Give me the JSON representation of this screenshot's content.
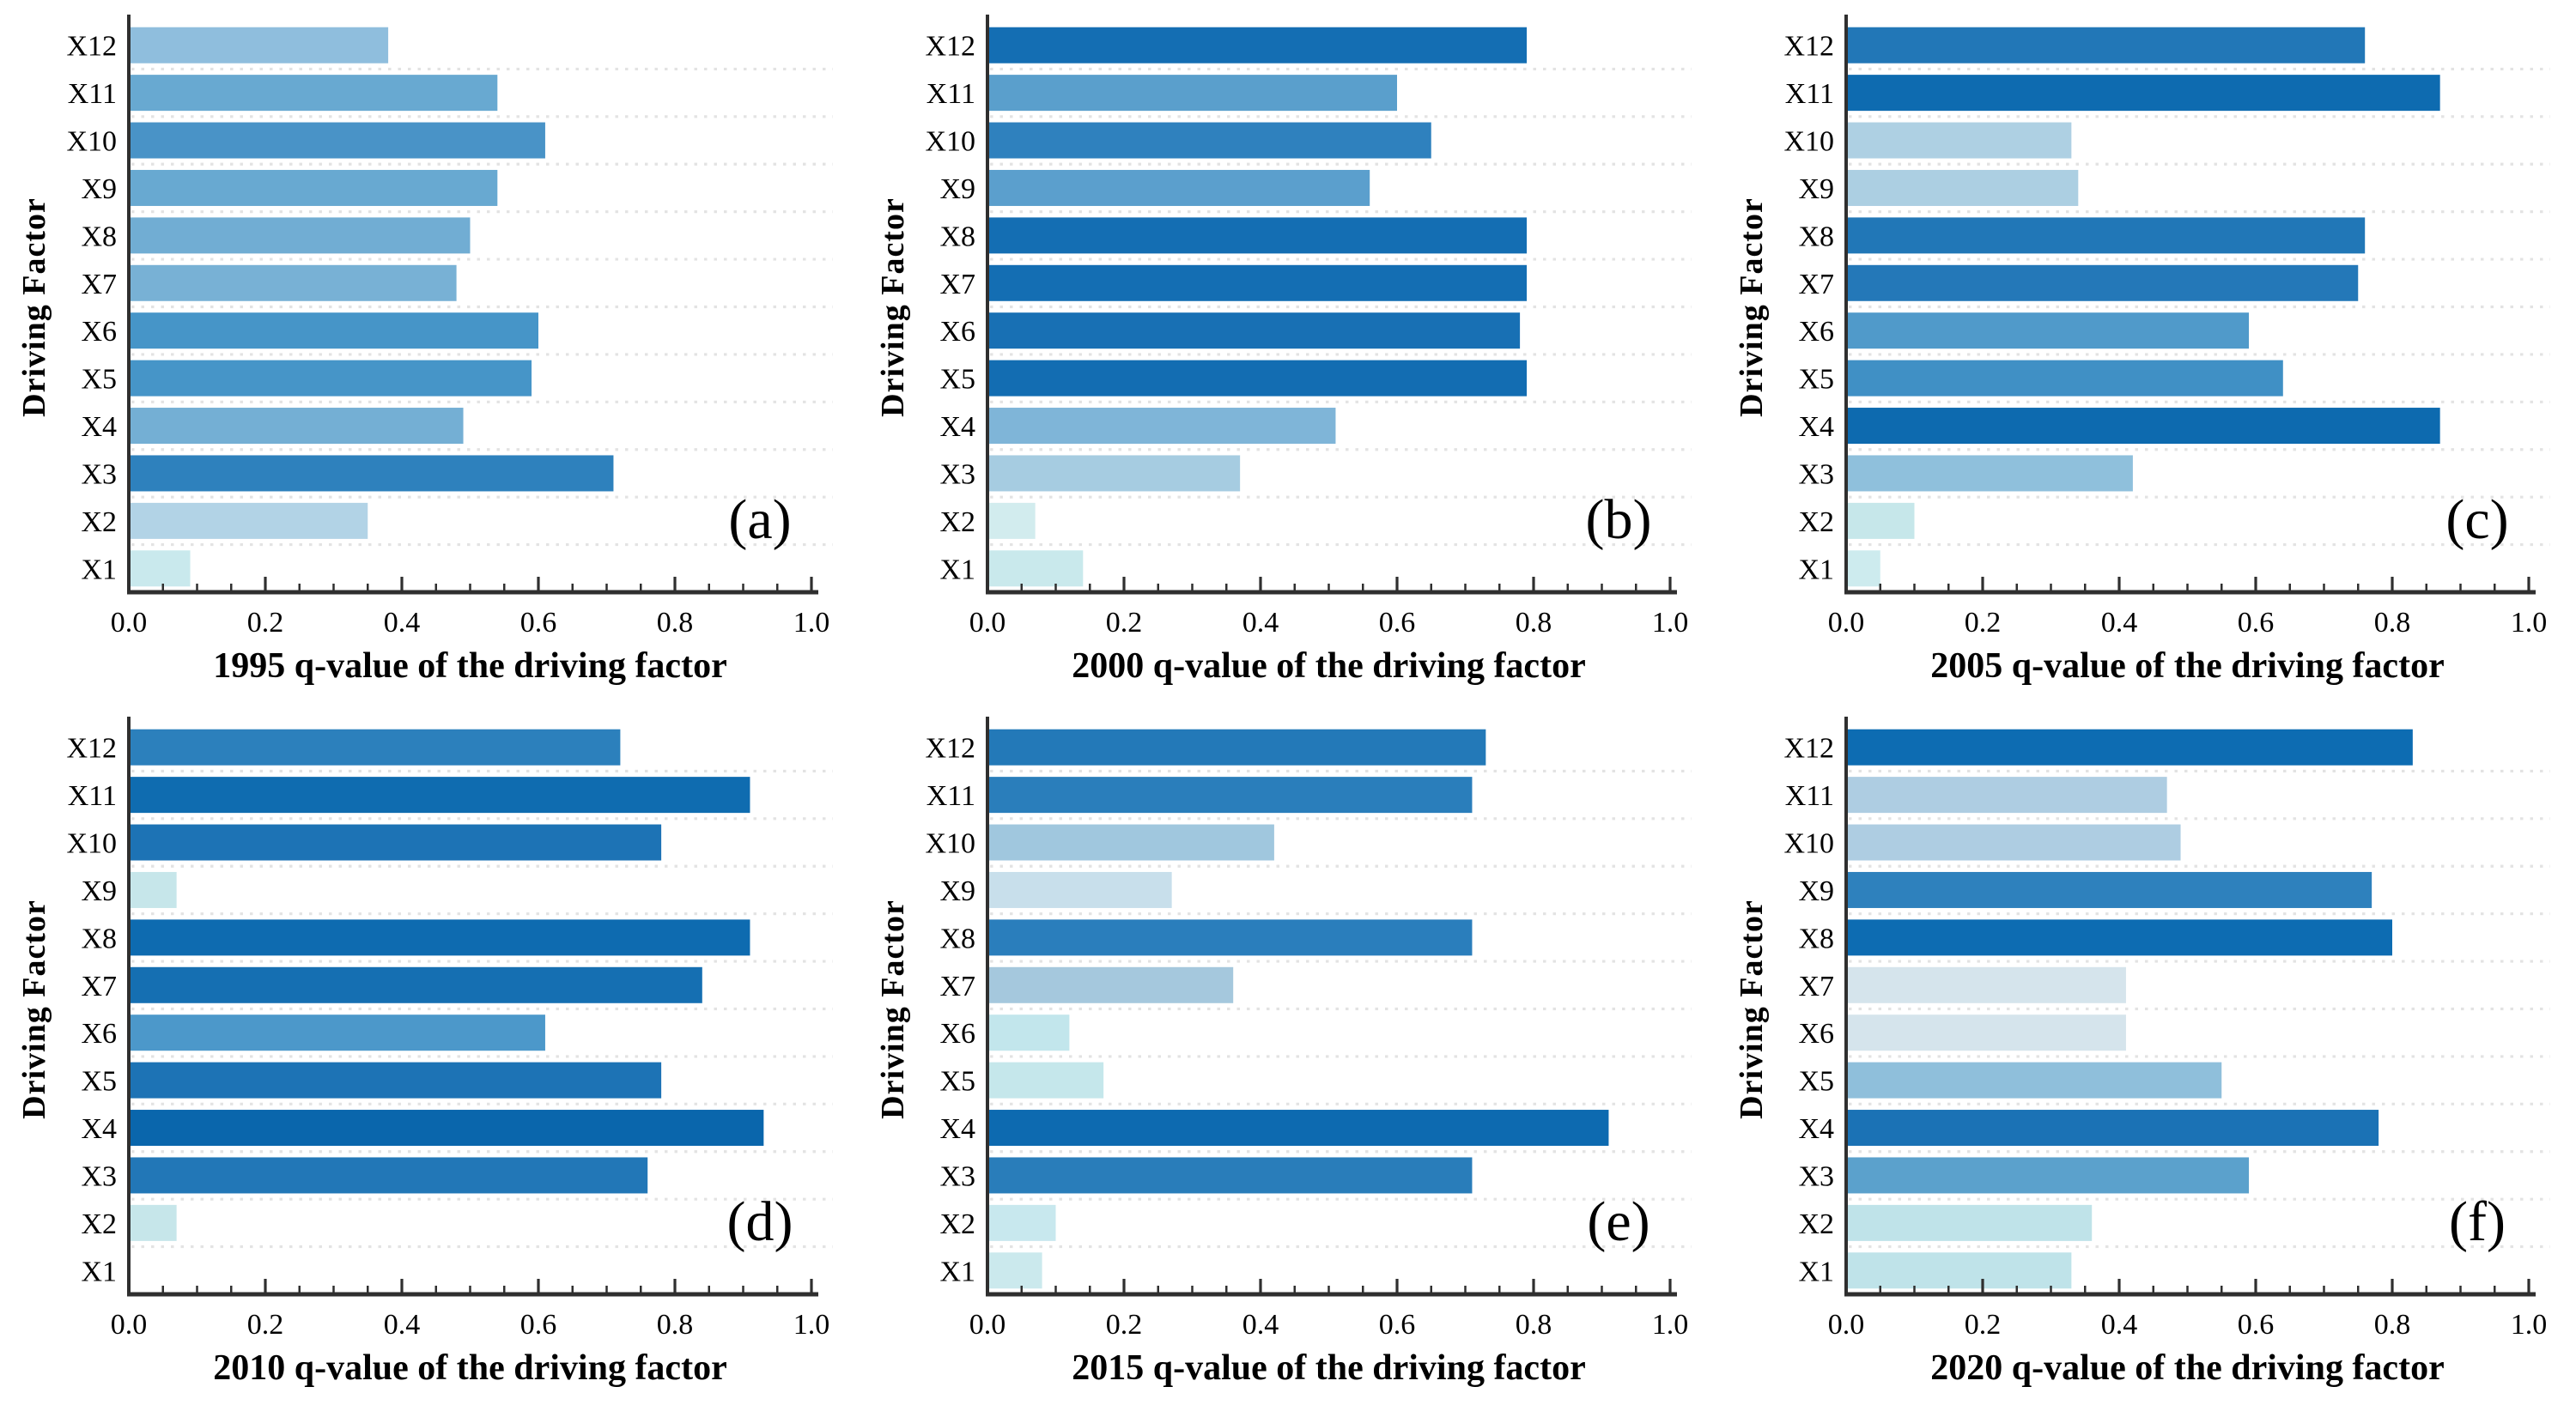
{
  "figure": {
    "background_color": "#ffffff",
    "axis_color": "#2f2f2f",
    "grid_color": "#e3e3e3",
    "text_color": "#000000"
  },
  "chart_data": [
    {
      "panel_label": "(a)",
      "type": "bar",
      "orientation": "horizontal",
      "xlabel": "1995 q-value of the driving factor",
      "ylabel": "Driving Factor",
      "xlim": [
        0,
        1
      ],
      "xticks": [
        "0.0",
        "0.2",
        "0.4",
        "0.6",
        "0.8",
        "1.0"
      ],
      "minor_tick_step": 0.05,
      "grid": "dotted horizontal between rows",
      "categories_top_to_bottom": [
        "X12",
        "X11",
        "X10",
        "X9",
        "X8",
        "X7",
        "X6",
        "X5",
        "X4",
        "X3",
        "X2",
        "X1"
      ],
      "values": [
        0.38,
        0.54,
        0.61,
        0.54,
        0.5,
        0.48,
        0.6,
        0.59,
        0.49,
        0.71,
        0.35,
        0.09
      ],
      "bar_colors": [
        "#8fbedd",
        "#68a9d1",
        "#4993c7",
        "#68a9d1",
        "#71add3",
        "#78b1d5",
        "#4695c8",
        "#4695c8",
        "#74afd4",
        "#2e81bd",
        "#b2d3e6",
        "#c9e9ed"
      ]
    },
    {
      "panel_label": "(b)",
      "type": "bar",
      "orientation": "horizontal",
      "xlabel": "2000 q-value of the driving factor",
      "ylabel": "Driving Factor",
      "xlim": [
        0,
        1
      ],
      "xticks": [
        "0.0",
        "0.2",
        "0.4",
        "0.6",
        "0.8",
        "1.0"
      ],
      "minor_tick_step": 0.05,
      "grid": "dotted horizontal between rows",
      "categories_top_to_bottom": [
        "X12",
        "X11",
        "X10",
        "X9",
        "X8",
        "X7",
        "X6",
        "X5",
        "X4",
        "X3",
        "X2",
        "X1"
      ],
      "values": [
        0.79,
        0.6,
        0.65,
        0.56,
        0.79,
        0.79,
        0.78,
        0.79,
        0.51,
        0.37,
        0.07,
        0.14
      ],
      "bar_colors": [
        "#146eb3",
        "#5a9fcc",
        "#2f81be",
        "#5b9fcd",
        "#146eb3",
        "#146eb3",
        "#1870b4",
        "#136db2",
        "#7fb5d8",
        "#a6cce1",
        "#d2ecee",
        "#c9e9ec"
      ]
    },
    {
      "panel_label": "(c)",
      "type": "bar",
      "orientation": "horizontal",
      "xlabel": "2005 q-value of the driving factor",
      "ylabel": "Driving Factor",
      "xlim": [
        0,
        1
      ],
      "xticks": [
        "0.0",
        "0.2",
        "0.4",
        "0.6",
        "0.8",
        "1.0"
      ],
      "minor_tick_step": 0.05,
      "grid": "dotted horizontal between rows",
      "categories_top_to_bottom": [
        "X12",
        "X11",
        "X10",
        "X9",
        "X8",
        "X7",
        "X6",
        "X5",
        "X4",
        "X3",
        "X2",
        "X1"
      ],
      "values": [
        0.76,
        0.87,
        0.33,
        0.34,
        0.76,
        0.75,
        0.59,
        0.64,
        0.87,
        0.42,
        0.1,
        0.05
      ],
      "bar_colors": [
        "#2277b7",
        "#0e6bb0",
        "#aed0e3",
        "#accfe2",
        "#2177b7",
        "#2478b8",
        "#509aca",
        "#4090c5",
        "#0d6aaf",
        "#8fc0dc",
        "#c6e7ea",
        "#cdebee"
      ]
    },
    {
      "panel_label": "(d)",
      "type": "bar",
      "orientation": "horizontal",
      "xlabel": "2010 q-value of the driving factor",
      "ylabel": "Driving Factor",
      "xlim": [
        0,
        1
      ],
      "xticks": [
        "0.0",
        "0.2",
        "0.4",
        "0.6",
        "0.8",
        "1.0"
      ],
      "minor_tick_step": 0.05,
      "grid": "dotted horizontal between rows",
      "categories_top_to_bottom": [
        "X12",
        "X11",
        "X10",
        "X9",
        "X8",
        "X7",
        "X6",
        "X5",
        "X4",
        "X3",
        "X2",
        "X1"
      ],
      "values": [
        0.72,
        0.91,
        0.78,
        0.07,
        0.91,
        0.84,
        0.61,
        0.78,
        0.93,
        0.76,
        0.07,
        0.0
      ],
      "bar_colors": [
        "#2c80bc",
        "#0f6cb0",
        "#1d73b5",
        "#c6e6ea",
        "#0e6bb0",
        "#156fb2",
        "#4c98ca",
        "#1d73b5",
        "#0a66ac",
        "#2277b7",
        "#c6e6ea",
        "#ffffff"
      ]
    },
    {
      "panel_label": "(e)",
      "type": "bar",
      "orientation": "horizontal",
      "xlabel": "2015 q-value of the driving factor",
      "ylabel": "Driving Factor",
      "xlim": [
        0,
        1
      ],
      "xticks": [
        "0.0",
        "0.2",
        "0.4",
        "0.6",
        "0.8",
        "1.0"
      ],
      "minor_tick_step": 0.05,
      "grid": "dotted horizontal between rows",
      "categories_top_to_bottom": [
        "X12",
        "X11",
        "X10",
        "X9",
        "X8",
        "X7",
        "X6",
        "X5",
        "X4",
        "X3",
        "X2",
        "X1"
      ],
      "values": [
        0.73,
        0.71,
        0.42,
        0.27,
        0.71,
        0.36,
        0.12,
        0.17,
        0.91,
        0.71,
        0.1,
        0.08
      ],
      "bar_colors": [
        "#2379b8",
        "#2a7ebb",
        "#a0c7de",
        "#c8dfeb",
        "#2a7ebc",
        "#a5c8dd",
        "#c2e6ec",
        "#c5e7eb",
        "#0d6ab0",
        "#297dba",
        "#c8e8ee",
        "#cbe9ed"
      ]
    },
    {
      "panel_label": "(f)",
      "type": "bar",
      "orientation": "horizontal",
      "xlabel": "2020 q-value of the driving factor",
      "ylabel": "Driving Factor",
      "xlim": [
        0,
        1
      ],
      "xticks": [
        "0.0",
        "0.2",
        "0.4",
        "0.6",
        "0.8",
        "1.0"
      ],
      "minor_tick_step": 0.05,
      "grid": "dotted horizontal between rows",
      "categories_top_to_bottom": [
        "X12",
        "X11",
        "X10",
        "X9",
        "X8",
        "X7",
        "X6",
        "X5",
        "X4",
        "X3",
        "X2",
        "X1"
      ],
      "values": [
        0.83,
        0.47,
        0.49,
        0.77,
        0.8,
        0.41,
        0.41,
        0.55,
        0.78,
        0.59,
        0.36,
        0.33
      ],
      "bar_colors": [
        "#0d6cb2",
        "#aecde2",
        "#aecde2",
        "#2e81bd",
        "#0d6cb2",
        "#d5e4ec",
        "#d5e4ec",
        "#8fbfdb",
        "#1b72b5",
        "#5ba1cc",
        "#bfe3e9",
        "#bfe3e9"
      ]
    }
  ]
}
